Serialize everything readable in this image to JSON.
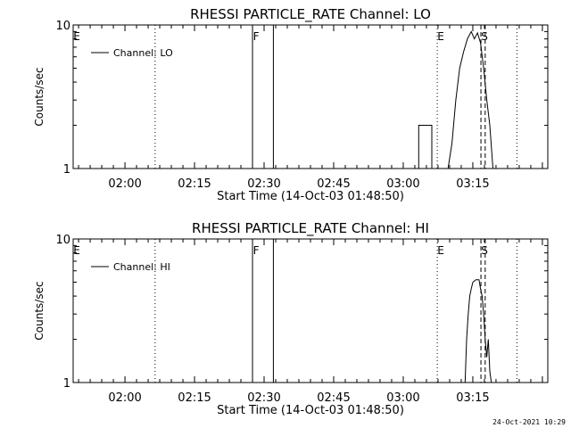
{
  "footer": {
    "timestamp": "24-Oct-2021 10:29"
  },
  "chart_data": [
    {
      "type": "line",
      "title": "RHESSI PARTICLE_RATE Channel: LO",
      "xlabel": "Start Time (14-Oct-03 01:48:50)",
      "ylabel": "Counts/sec",
      "y_scale": "log",
      "ylim": [
        1,
        10
      ],
      "yticks": [
        "1",
        "10"
      ],
      "xlim": [
        "01:48:50",
        "03:31:10"
      ],
      "xticks": [
        "02:00",
        "02:15",
        "02:30",
        "02:45",
        "03:00",
        "03:15"
      ],
      "legend": {
        "position": "top-left",
        "entries": [
          "Channel: LO"
        ]
      },
      "series": [
        {
          "name": "Channel: LO",
          "color": "#000000",
          "points": [
            [
              "03:03:20",
              1
            ],
            [
              "03:03:20",
              2
            ],
            [
              "03:06:10",
              2
            ],
            [
              "03:06:10",
              1
            ],
            [
              "03:09:40",
              1
            ],
            [
              "03:10:30",
              1.5
            ],
            [
              "03:11:20",
              3
            ],
            [
              "03:12:10",
              5
            ],
            [
              "03:13:00",
              6.5
            ],
            [
              "03:13:50",
              8
            ],
            [
              "03:14:40",
              9
            ],
            [
              "03:15:20",
              8
            ],
            [
              "03:16:00",
              8.8
            ],
            [
              "03:16:40",
              7.5
            ],
            [
              "03:17:20",
              5
            ],
            [
              "03:18:00",
              3
            ],
            [
              "03:18:40",
              2
            ],
            [
              "03:19:20",
              1
            ]
          ]
        }
      ],
      "markers": [
        {
          "label": "E",
          "time": "01:48:50",
          "style": "dotted"
        },
        {
          "label": "",
          "time": "02:06:30",
          "style": "dotted"
        },
        {
          "label": "F",
          "time": "02:27:30",
          "style": "solid"
        },
        {
          "label": "",
          "time": "02:32:00",
          "style": "solid"
        },
        {
          "label": "E",
          "time": "03:07:20",
          "style": "dotted"
        },
        {
          "label": "S",
          "time": "03:16:45",
          "style": "dashed"
        },
        {
          "label": "",
          "time": "03:17:40",
          "style": "dashed"
        },
        {
          "label": "",
          "time": "03:24:30",
          "style": "dotted"
        }
      ]
    },
    {
      "type": "line",
      "title": "RHESSI PARTICLE_RATE Channel: HI",
      "xlabel": "Start Time (14-Oct-03 01:48:50)",
      "ylabel": "Counts/sec",
      "y_scale": "log",
      "ylim": [
        1,
        10
      ],
      "yticks": [
        "1",
        "10"
      ],
      "xlim": [
        "01:48:50",
        "03:31:10"
      ],
      "xticks": [
        "02:00",
        "02:15",
        "02:30",
        "02:45",
        "03:00",
        "03:15"
      ],
      "legend": {
        "position": "top-left",
        "entries": [
          "Channel: HI"
        ]
      },
      "series": [
        {
          "name": "Channel: HI",
          "color": "#000000",
          "points": [
            [
              "03:13:20",
              1
            ],
            [
              "03:13:40",
              2
            ],
            [
              "03:14:00",
              3
            ],
            [
              "03:14:20",
              4
            ],
            [
              "03:14:40",
              4.5
            ],
            [
              "03:15:00",
              5
            ],
            [
              "03:15:40",
              5.2
            ],
            [
              "03:16:20",
              5.2
            ],
            [
              "03:16:40",
              4.5
            ],
            [
              "03:17:00",
              4
            ],
            [
              "03:17:20",
              3
            ],
            [
              "03:17:40",
              2
            ],
            [
              "03:18:00",
              1.5
            ],
            [
              "03:18:20",
              2
            ],
            [
              "03:18:40",
              1.2
            ],
            [
              "03:19:00",
              1
            ]
          ]
        }
      ],
      "markers": [
        {
          "label": "E",
          "time": "01:48:50",
          "style": "dotted"
        },
        {
          "label": "",
          "time": "02:06:30",
          "style": "dotted"
        },
        {
          "label": "F",
          "time": "02:27:30",
          "style": "solid"
        },
        {
          "label": "",
          "time": "02:32:00",
          "style": "solid"
        },
        {
          "label": "E",
          "time": "03:07:20",
          "style": "dotted"
        },
        {
          "label": "S",
          "time": "03:16:45",
          "style": "dashed"
        },
        {
          "label": "",
          "time": "03:17:40",
          "style": "dashed"
        },
        {
          "label": "",
          "time": "03:24:30",
          "style": "dotted"
        }
      ]
    }
  ]
}
